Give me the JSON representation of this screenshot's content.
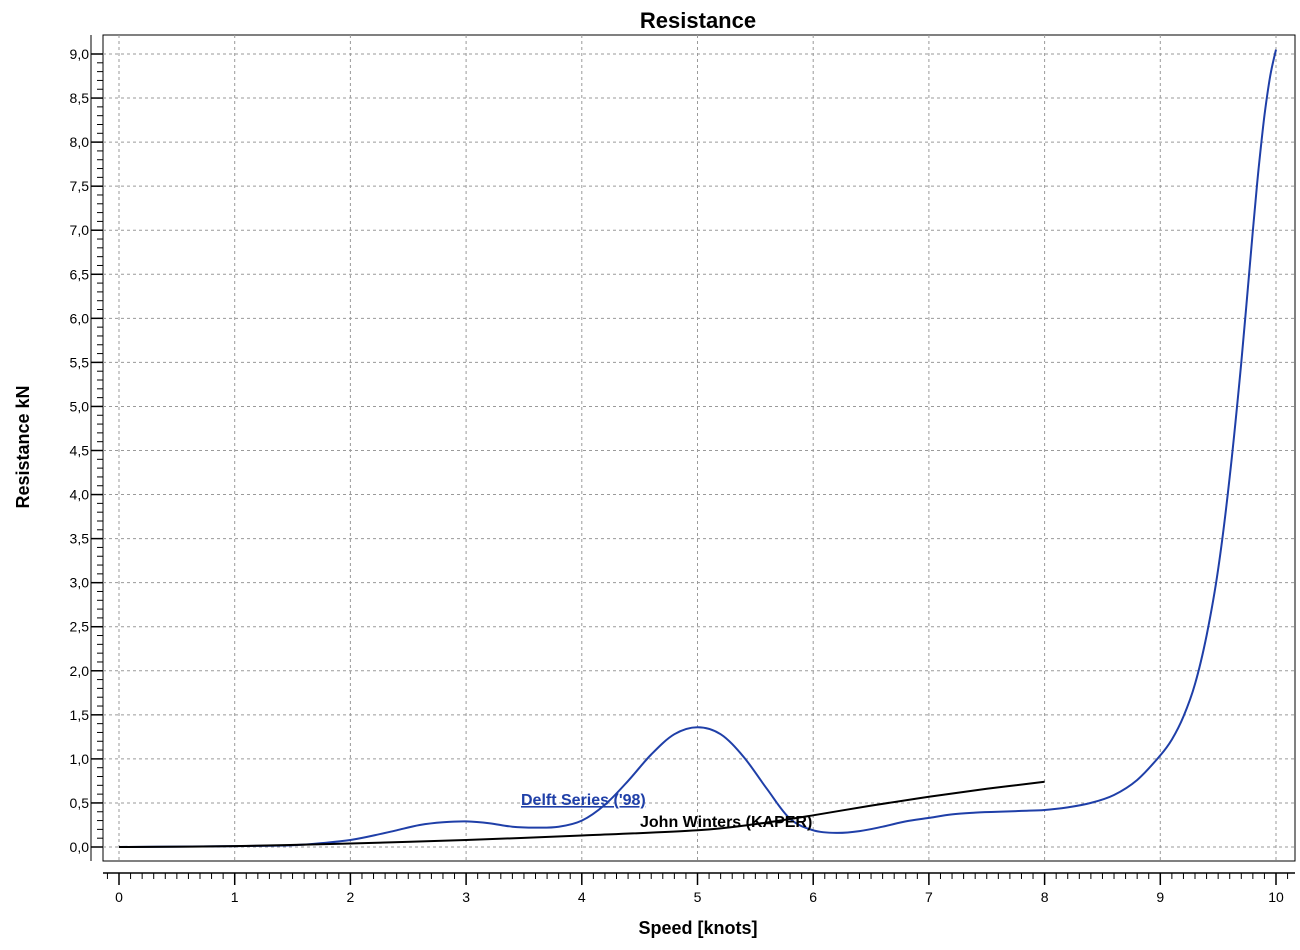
{
  "chart_data": {
    "type": "line",
    "title": "Resistance",
    "xlabel": "Speed [knots]",
    "ylabel": "Resistance kN",
    "xlim": [
      0,
      10
    ],
    "ylim": [
      0,
      9
    ],
    "x_ticks": [
      "0",
      "1",
      "2",
      "3",
      "4",
      "5",
      "6",
      "7",
      "8",
      "9",
      "10"
    ],
    "y_ticks": [
      "0,0",
      "0,5",
      "1,0",
      "1,5",
      "2,0",
      "2,5",
      "3,0",
      "3,5",
      "4,0",
      "4,5",
      "5,0",
      "5,5",
      "6,0",
      "6,5",
      "7,0",
      "7,5",
      "8,0",
      "8,5",
      "9,0"
    ],
    "grid": true,
    "series": [
      {
        "name": "Delft Series ('98)",
        "color": "#1f3fa8",
        "x": [
          0,
          0.5,
          1.0,
          1.5,
          1.8,
          2.0,
          2.2,
          2.4,
          2.6,
          2.8,
          3.0,
          3.2,
          3.4,
          3.6,
          3.8,
          4.0,
          4.2,
          4.4,
          4.6,
          4.8,
          5.0,
          5.2,
          5.4,
          5.6,
          5.8,
          6.0,
          6.2,
          6.4,
          6.6,
          6.8,
          7.0,
          7.2,
          7.4,
          7.6,
          7.8,
          8.0,
          8.2,
          8.4,
          8.6,
          8.8,
          9.0,
          9.1,
          9.2,
          9.3,
          9.4,
          9.5,
          9.6,
          9.7,
          9.8,
          9.85,
          9.9,
          9.95,
          10.0
        ],
        "y": [
          0,
          0.005,
          0.01,
          0.02,
          0.05,
          0.08,
          0.13,
          0.19,
          0.25,
          0.28,
          0.29,
          0.27,
          0.23,
          0.22,
          0.23,
          0.3,
          0.48,
          0.75,
          1.05,
          1.28,
          1.36,
          1.28,
          1.02,
          0.66,
          0.32,
          0.19,
          0.16,
          0.18,
          0.23,
          0.29,
          0.33,
          0.37,
          0.39,
          0.4,
          0.41,
          0.42,
          0.45,
          0.5,
          0.59,
          0.76,
          1.04,
          1.22,
          1.48,
          1.85,
          2.4,
          3.15,
          4.2,
          5.5,
          7.0,
          7.7,
          8.3,
          8.75,
          9.05
        ]
      },
      {
        "name": "John Winters (KAPER)",
        "color": "#000000",
        "x": [
          0,
          1.0,
          2.0,
          3.0,
          4.0,
          5.0,
          5.5,
          6.0,
          6.5,
          7.0,
          7.5,
          8.0
        ],
        "y": [
          0,
          0.01,
          0.04,
          0.08,
          0.13,
          0.19,
          0.26,
          0.36,
          0.47,
          0.57,
          0.66,
          0.74
        ]
      }
    ]
  }
}
